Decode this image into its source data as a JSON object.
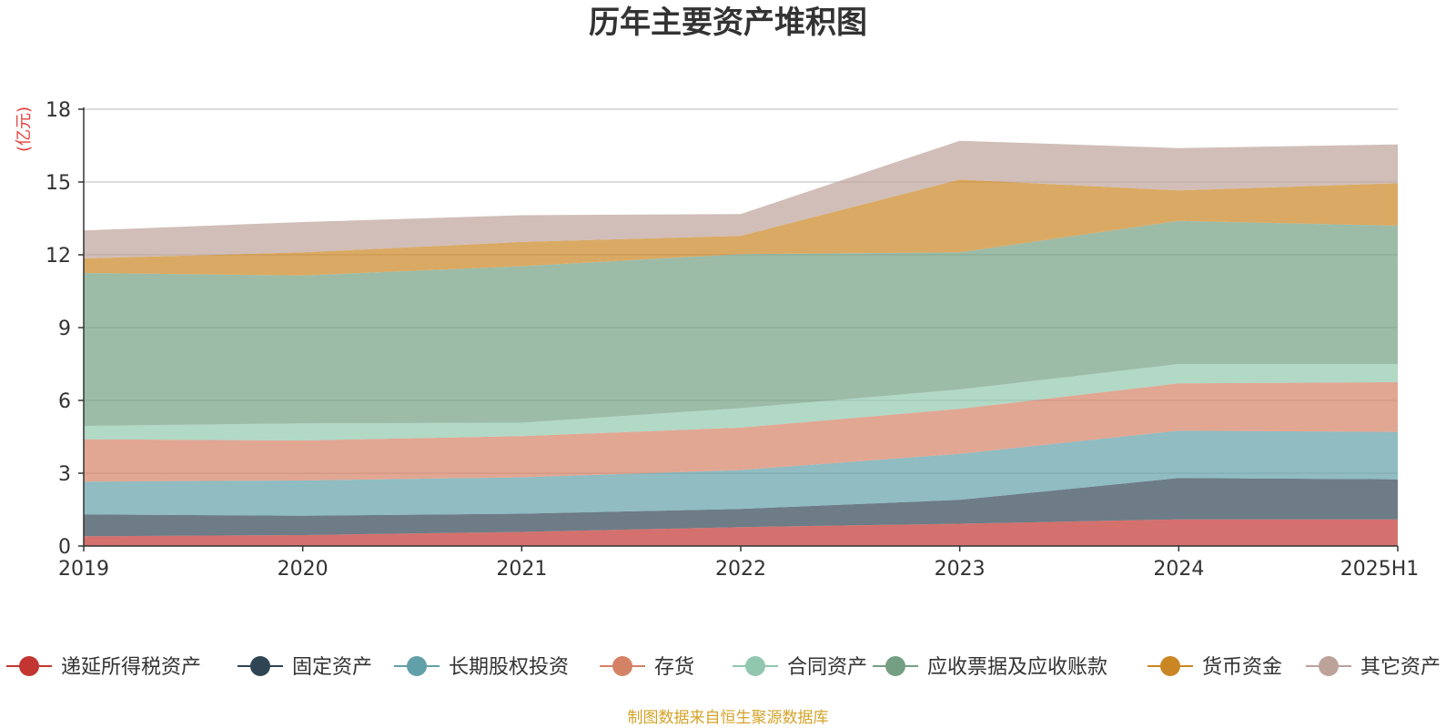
{
  "chart_data": {
    "type": "area",
    "stacked": true,
    "title": "历年主要资产堆积图",
    "unit_label": "(亿元)",
    "source": "制图数据来自恒生聚源数据库",
    "categories": [
      "2019",
      "2020",
      "2021",
      "2022",
      "2023",
      "2024",
      "2025H1"
    ],
    "ylim": [
      0,
      18
    ],
    "yticks": [
      "0",
      "3",
      "6",
      "9",
      "12",
      "15",
      "18"
    ],
    "grid": true,
    "legend_position": "bottom",
    "series": [
      {
        "name": "递延所得税资产",
        "color": "#c23531",
        "values": [
          0.4,
          0.45,
          0.58,
          0.78,
          0.92,
          1.1,
          1.1
        ]
      },
      {
        "name": "固定资产",
        "color": "#2f4554",
        "values": [
          0.9,
          0.8,
          0.75,
          0.75,
          0.98,
          1.7,
          1.65
        ]
      },
      {
        "name": "长期股权投资",
        "color": "#61a0a8",
        "values": [
          1.35,
          1.45,
          1.5,
          1.6,
          1.9,
          1.95,
          1.95
        ]
      },
      {
        "name": "存货",
        "color": "#d48265",
        "values": [
          1.75,
          1.65,
          1.7,
          1.75,
          1.85,
          1.95,
          2.05
        ]
      },
      {
        "name": "合同资产",
        "color": "#91c7ae",
        "values": [
          0.55,
          0.7,
          0.55,
          0.8,
          0.8,
          0.8,
          0.75
        ]
      },
      {
        "name": "应收票据及应收账款",
        "color": "#749f83",
        "values": [
          6.3,
          6.1,
          6.45,
          6.35,
          5.65,
          5.9,
          5.7
        ]
      },
      {
        "name": "货币资金",
        "color": "#ca8622",
        "values": [
          0.6,
          0.95,
          1.0,
          0.75,
          3.0,
          1.25,
          1.75
        ]
      },
      {
        "name": "其它资产",
        "color": "#bda29a",
        "values": [
          1.15,
          1.25,
          1.1,
          0.9,
          1.6,
          1.75,
          1.6
        ]
      }
    ]
  }
}
